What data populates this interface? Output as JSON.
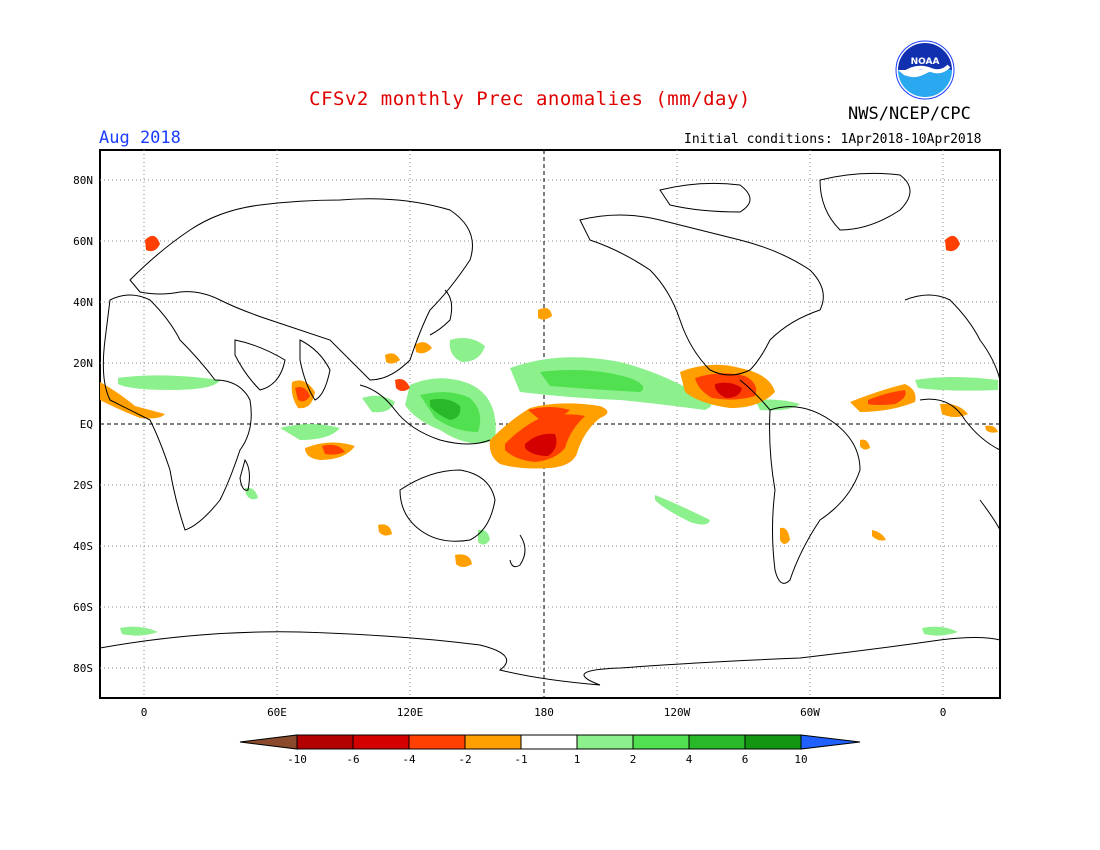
{
  "header": {
    "title": "CFSv2 monthly Prec anomalies (mm/day)",
    "month": "Aug 2018",
    "org": "NWS/NCEP/CPC",
    "initial_conditions": "Initial conditions: 1Apr2018-10Apr2018",
    "logo_text": "NOAA"
  },
  "map": {
    "lat_labels": [
      "80N",
      "60N",
      "40N",
      "20N",
      "EQ",
      "20S",
      "40S",
      "60S",
      "80S"
    ],
    "lon_labels": [
      "0",
      "60E",
      "120E",
      "180",
      "120W",
      "60W",
      "0"
    ]
  },
  "colorbar": {
    "labels": [
      "-10",
      "-6",
      "-4",
      "-2",
      "-1",
      "1",
      "2",
      "4",
      "6",
      "10"
    ],
    "colors": [
      "#8b4a2b",
      "#b30000",
      "#d40000",
      "#ff4000",
      "#ffa000",
      "#ffffff",
      "#8cf08c",
      "#50e050",
      "#28b828",
      "#129612",
      "#2060ff"
    ]
  },
  "colors": {
    "title": "#e00000",
    "month": "#1a3dff",
    "land_outline": "#000000",
    "grid": "#888888"
  }
}
